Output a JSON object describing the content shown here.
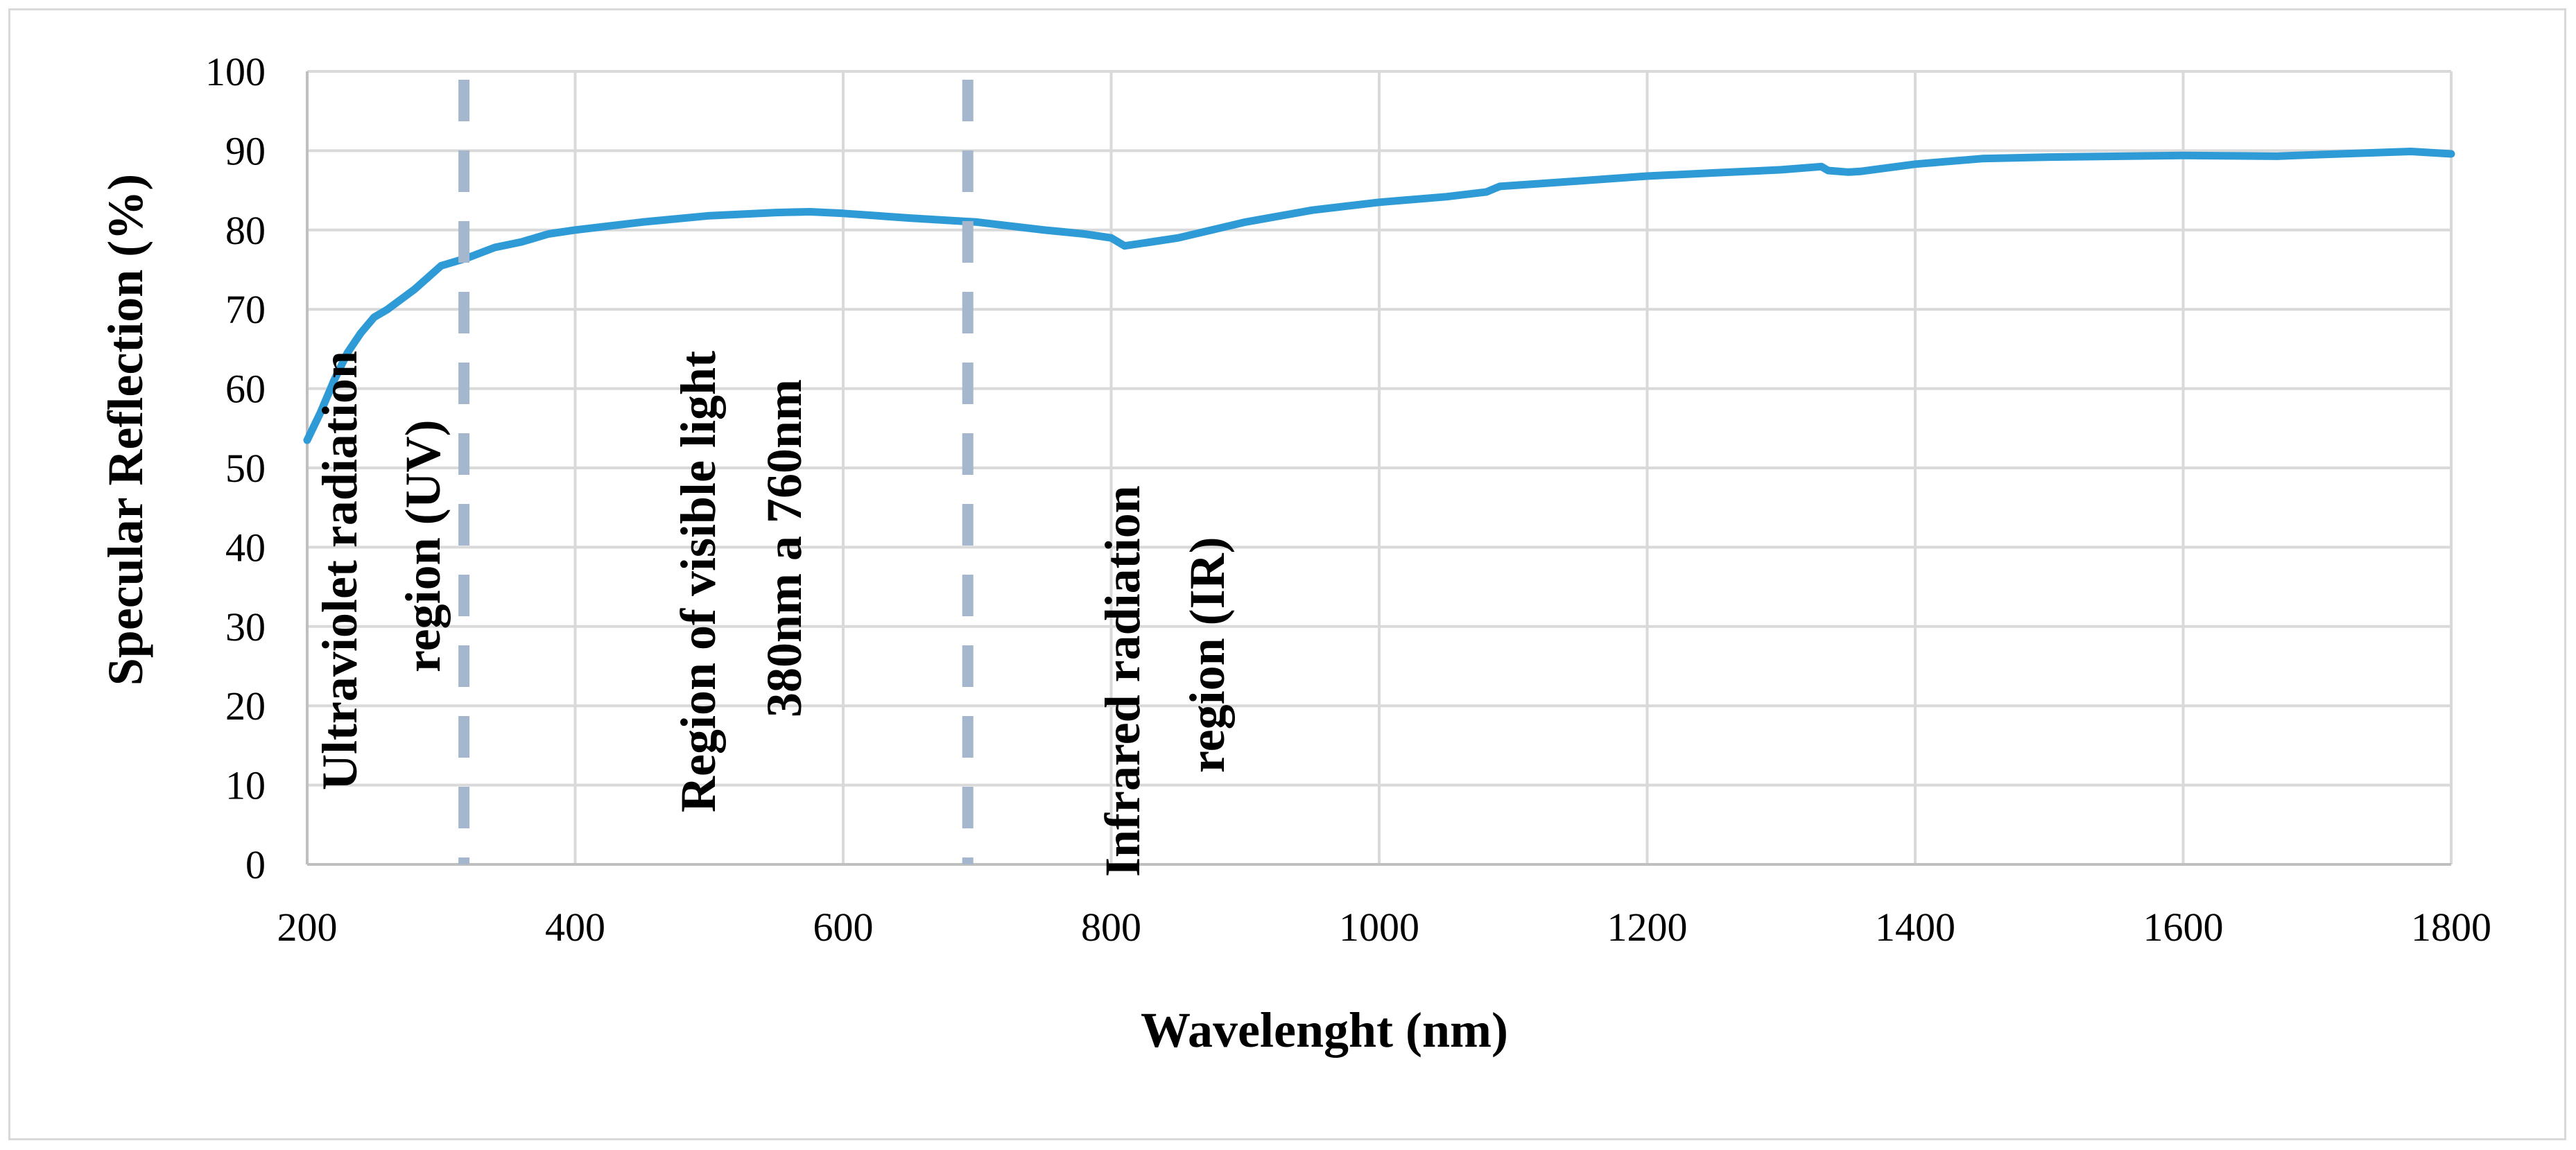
{
  "chart_data": {
    "type": "line",
    "xlabel": "Wavelenght (nm)",
    "ylabel": "Specular Reflection (%)",
    "xlim": [
      200,
      1800
    ],
    "ylim": [
      0,
      100
    ],
    "x_ticks": [
      200,
      400,
      600,
      800,
      1000,
      1200,
      1400,
      1600,
      1800
    ],
    "y_ticks": [
      0,
      10,
      20,
      30,
      40,
      50,
      60,
      70,
      80,
      90,
      100
    ],
    "grid": true,
    "series": [
      {
        "name": "Specular Reflection",
        "color": "#2E9BD6",
        "x": [
          200,
          210,
          220,
          230,
          240,
          250,
          260,
          280,
          300,
          320,
          340,
          360,
          380,
          400,
          450,
          500,
          550,
          575,
          600,
          650,
          700,
          750,
          780,
          800,
          810,
          830,
          850,
          900,
          950,
          1000,
          1050,
          1080,
          1090,
          1150,
          1200,
          1250,
          1300,
          1330,
          1335,
          1350,
          1360,
          1400,
          1450,
          1500,
          1600,
          1670,
          1700,
          1770,
          1800
        ],
        "y": [
          53.5,
          57,
          61,
          64.5,
          67,
          69,
          70,
          72.5,
          75.5,
          76.5,
          77.8,
          78.5,
          79.5,
          80,
          81,
          81.8,
          82.2,
          82.3,
          82.1,
          81.5,
          81,
          80,
          79.5,
          79,
          78,
          78.5,
          79,
          81,
          82.5,
          83.5,
          84.2,
          84.8,
          85.5,
          86.2,
          86.8,
          87.2,
          87.6,
          88,
          87.5,
          87.3,
          87.4,
          88.3,
          89,
          89.2,
          89.4,
          89.3,
          89.5,
          89.9,
          89.6
        ]
      }
    ],
    "region_dividers": [
      {
        "x": 317,
        "color": "#A5B7CC",
        "style": "dashed"
      },
      {
        "x": 693,
        "color": "#A5B7CC",
        "style": "dashed"
      }
    ],
    "annotations": [
      {
        "lines": [
          "Ultraviolet radiation",
          "region (UV)"
        ]
      },
      {
        "lines": [
          "Region of visible light",
          "380nm a 760nm"
        ]
      },
      {
        "lines": [
          "Infrared radiation",
          "region (IR)"
        ]
      }
    ],
    "colors": {
      "grid": "#d9d9d9",
      "axis": "#bfbfbf",
      "line": "#2E9BD6",
      "divider": "#A5B7CC",
      "frame": "#d9d9d9"
    }
  }
}
